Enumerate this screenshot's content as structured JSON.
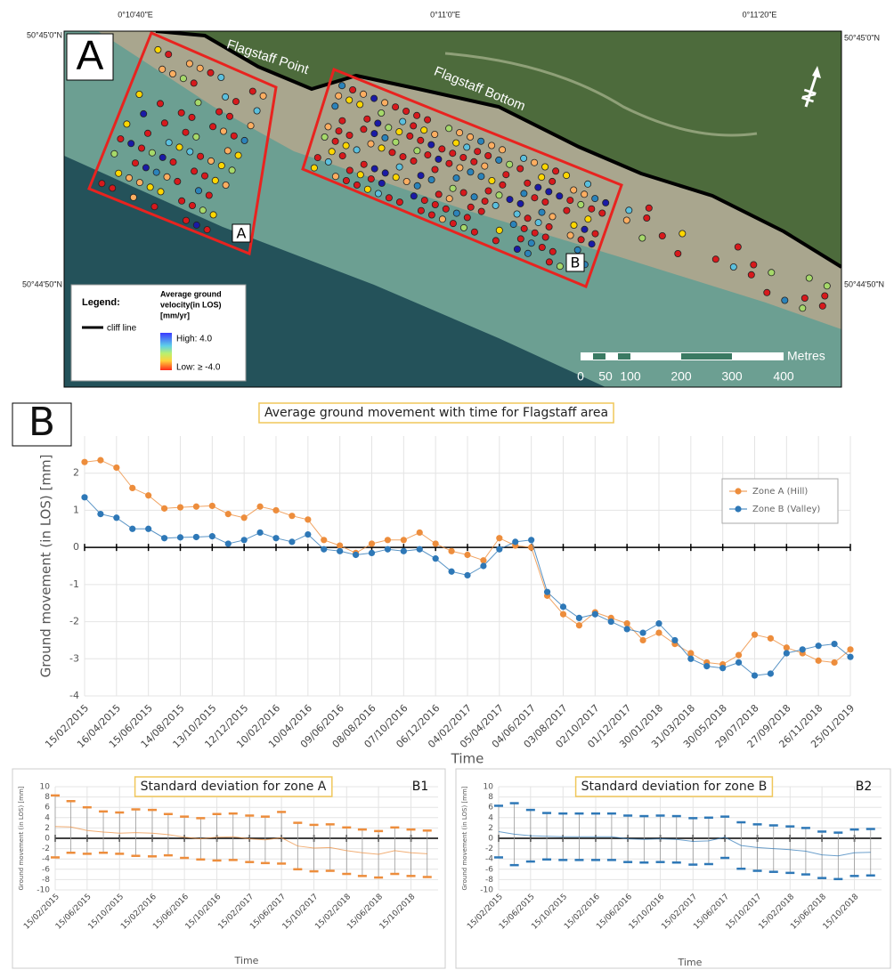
{
  "map": {
    "panel": "A",
    "lon_labels": [
      "0°10'40\"E",
      "0°11'0\"E",
      "0°11'20\"E"
    ],
    "lat_labels": [
      "50°45'0\"N",
      "50°44'50\"N"
    ],
    "places": [
      "Flagstaff Point",
      "Flagstaff Bottom"
    ],
    "zones": [
      "A",
      "B"
    ],
    "north": "N",
    "legend": {
      "title": "Legend:",
      "cliff": "cliff line",
      "velocity_title": [
        "Average ground",
        "velocity(in LOS)",
        "[mm/yr]"
      ],
      "high": "High: 4.0",
      "low": "Low: ≥ -4.0"
    },
    "scale": {
      "unit": "Metres",
      "labels": [
        "0",
        "50",
        "100",
        "200",
        "300",
        "400"
      ]
    }
  },
  "chart_data": [
    {
      "type": "line",
      "panel": "B",
      "title": "Average ground movement with time for Flagstaff area",
      "x_label": "Time",
      "y_label": "Ground movement (in LOS) [mm]",
      "x": [
        "15/02/2015",
        "17/03/2015",
        "16/04/2015",
        "16/05/2015",
        "15/06/2015",
        "15/07/2015",
        "14/08/2015",
        "13/09/2015",
        "13/10/2015",
        "12/11/2015",
        "12/12/2015",
        "11/01/2016",
        "10/02/2016",
        "11/03/2016",
        "10/04/2016",
        "10/05/2016",
        "09/06/2016",
        "09/07/2016",
        "08/08/2016",
        "07/09/2016",
        "07/10/2016",
        "06/11/2016",
        "06/12/2016",
        "05/01/2017",
        "04/02/2017",
        "06/03/2017",
        "05/04/2017",
        "05/05/2017",
        "04/06/2017",
        "04/07/2017",
        "03/08/2017",
        "02/09/2017",
        "02/10/2017",
        "01/11/2017",
        "01/12/2017",
        "31/12/2017",
        "30/01/2018",
        "01/03/2018",
        "31/03/2018",
        "30/04/2018",
        "30/05/2018",
        "29/06/2018",
        "29/07/2018",
        "28/08/2018",
        "27/09/2018",
        "27/10/2018",
        "26/11/2018",
        "26/12/2018",
        "25/01/2019"
      ],
      "series": [
        {
          "name": "Zone A (Hill)",
          "color": "#ed8d3c",
          "values": [
            2.3,
            2.35,
            2.15,
            1.6,
            1.4,
            1.05,
            1.08,
            1.1,
            1.12,
            0.9,
            0.8,
            1.1,
            1.0,
            0.85,
            0.75,
            0.2,
            0.05,
            -0.15,
            0.1,
            0.2,
            0.2,
            0.4,
            0.1,
            -0.1,
            -0.2,
            -0.35,
            0.25,
            0.05,
            0.0,
            -1.3,
            -1.8,
            -2.1,
            -1.75,
            -1.9,
            -2.05,
            -2.5,
            -2.3,
            -2.6,
            -2.85,
            -3.1,
            -3.15,
            -2.9,
            -2.35,
            -2.45,
            -2.7,
            -2.85,
            -3.05,
            -3.1,
            -2.75
          ]
        },
        {
          "name": "Zone B (Valley)",
          "color": "#2e78b7",
          "values": [
            1.35,
            0.9,
            0.8,
            0.5,
            0.5,
            0.25,
            0.27,
            0.28,
            0.3,
            0.1,
            0.2,
            0.4,
            0.25,
            0.15,
            0.35,
            -0.05,
            -0.1,
            -0.2,
            -0.15,
            -0.05,
            -0.1,
            -0.05,
            -0.3,
            -0.65,
            -0.75,
            -0.5,
            -0.05,
            0.15,
            0.2,
            -1.2,
            -1.6,
            -1.9,
            -1.8,
            -2.0,
            -2.2,
            -2.3,
            -2.05,
            -2.5,
            -3.0,
            -3.2,
            -3.25,
            -3.1,
            -3.45,
            -3.4,
            -2.85,
            -2.75,
            -2.65,
            -2.6,
            -2.95
          ]
        }
      ],
      "xlim": [
        "15/02/2015",
        "25/01/2019"
      ],
      "xticks": [
        "15/02/2015",
        "16/04/2015",
        "15/06/2015",
        "14/08/2015",
        "13/10/2015",
        "12/12/2015",
        "10/02/2016",
        "10/04/2016",
        "09/06/2016",
        "08/08/2016",
        "07/10/2016",
        "06/12/2016",
        "04/02/2017",
        "05/04/2017",
        "04/06/2017",
        "03/08/2017",
        "02/10/2017",
        "01/12/2017",
        "30/01/2018",
        "31/03/2018",
        "30/05/2018",
        "29/07/2018",
        "27/09/2018",
        "26/11/2018",
        "25/01/2019"
      ],
      "ylim": [
        -4,
        3
      ],
      "yticks": [
        -4,
        -3,
        -2,
        -1,
        0,
        1,
        2
      ],
      "grid": true,
      "legend": "upper right"
    },
    {
      "type": "errorbar",
      "panel": "B1",
      "title": "Standard deviation for zone A",
      "x_label": "Time",
      "y_label": "Ground movement (in LOS) [mm]",
      "x": [
        "15/02/2015",
        "15/04/2015",
        "15/06/2015",
        "15/08/2015",
        "15/10/2015",
        "15/12/2015",
        "15/02/2016",
        "15/04/2016",
        "15/06/2016",
        "15/08/2016",
        "15/10/2016",
        "15/12/2016",
        "15/02/2017",
        "15/04/2017",
        "15/06/2017",
        "15/08/2017",
        "15/10/2017",
        "15/12/2017",
        "15/02/2018",
        "15/04/2018",
        "15/06/2018",
        "15/08/2018",
        "15/10/2018",
        "15/12/2018"
      ],
      "series": [
        {
          "color": "#ed8d3c",
          "values": [
            2.3,
            2.2,
            1.5,
            1.2,
            1.0,
            1.1,
            1.0,
            0.7,
            0.2,
            -0.1,
            0.2,
            0.3,
            -0.1,
            -0.3,
            0.1,
            -1.5,
            -1.9,
            -1.8,
            -2.4,
            -2.8,
            -3.1,
            -2.4,
            -2.8,
            -3.0
          ],
          "errors": [
            6,
            5,
            4.5,
            4,
            4,
            4.5,
            4.5,
            4,
            4,
            4,
            4.5,
            4.5,
            4.5,
            4.5,
            5,
            4.5,
            4.5,
            4.5,
            4.5,
            4.5,
            4.5,
            4.5,
            4.5,
            4.5
          ]
        }
      ],
      "xlim": [
        "15/02/2015",
        "25/01/2019"
      ],
      "xticks": [
        "15/02/2015",
        "15/06/2015",
        "15/10/2015",
        "15/02/2016",
        "15/06/2016",
        "15/10/2016",
        "15/02/2017",
        "15/06/2017",
        "15/10/2017",
        "15/02/2018",
        "15/06/2018",
        "15/10/2018"
      ],
      "ylim": [
        -10,
        10
      ],
      "yticks": [
        -10,
        -8,
        -6,
        -4,
        -2,
        0,
        2,
        4,
        6,
        8,
        10
      ],
      "grid": true
    },
    {
      "type": "errorbar",
      "panel": "B2",
      "title": "Standard deviation for zone B",
      "x_label": "Time",
      "y_label": "Ground movement (in LOS) [mm]",
      "x": [
        "15/02/2015",
        "15/04/2015",
        "15/06/2015",
        "15/08/2015",
        "15/10/2015",
        "15/12/2015",
        "15/02/2016",
        "15/04/2016",
        "15/06/2016",
        "15/08/2016",
        "15/10/2016",
        "15/12/2016",
        "15/02/2017",
        "15/04/2017",
        "15/06/2017",
        "15/08/2017",
        "15/10/2017",
        "15/12/2017",
        "15/02/2018",
        "15/04/2018",
        "15/06/2018",
        "15/08/2018",
        "15/10/2018",
        "15/12/2018"
      ],
      "series": [
        {
          "color": "#2e78b7",
          "values": [
            1.3,
            0.8,
            0.5,
            0.4,
            0.3,
            0.3,
            0.3,
            0.3,
            -0.1,
            -0.2,
            -0.1,
            -0.2,
            -0.6,
            -0.5,
            0.2,
            -1.4,
            -1.8,
            -2.0,
            -2.2,
            -2.5,
            -3.2,
            -3.4,
            -2.8,
            -2.7
          ],
          "errors": [
            5,
            6,
            5,
            4.5,
            4.5,
            4.5,
            4.5,
            4.5,
            4.5,
            4.5,
            4.5,
            4.5,
            4.5,
            4.5,
            4,
            4.5,
            4.5,
            4.5,
            4.5,
            4.5,
            4.5,
            4.5,
            4.5,
            4.5
          ]
        }
      ],
      "xlim": [
        "15/02/2015",
        "25/01/2019"
      ],
      "xticks": [
        "15/02/2015",
        "15/06/2015",
        "15/10/2015",
        "15/02/2016",
        "15/06/2016",
        "15/10/2016",
        "15/02/2017",
        "15/06/2017",
        "15/10/2017",
        "15/02/2018",
        "15/06/2018",
        "15/10/2018"
      ],
      "ylim": [
        -10,
        10
      ],
      "yticks": [
        -10,
        -8,
        -6,
        -4,
        -2,
        0,
        2,
        4,
        6,
        8,
        10
      ],
      "grid": true
    }
  ]
}
